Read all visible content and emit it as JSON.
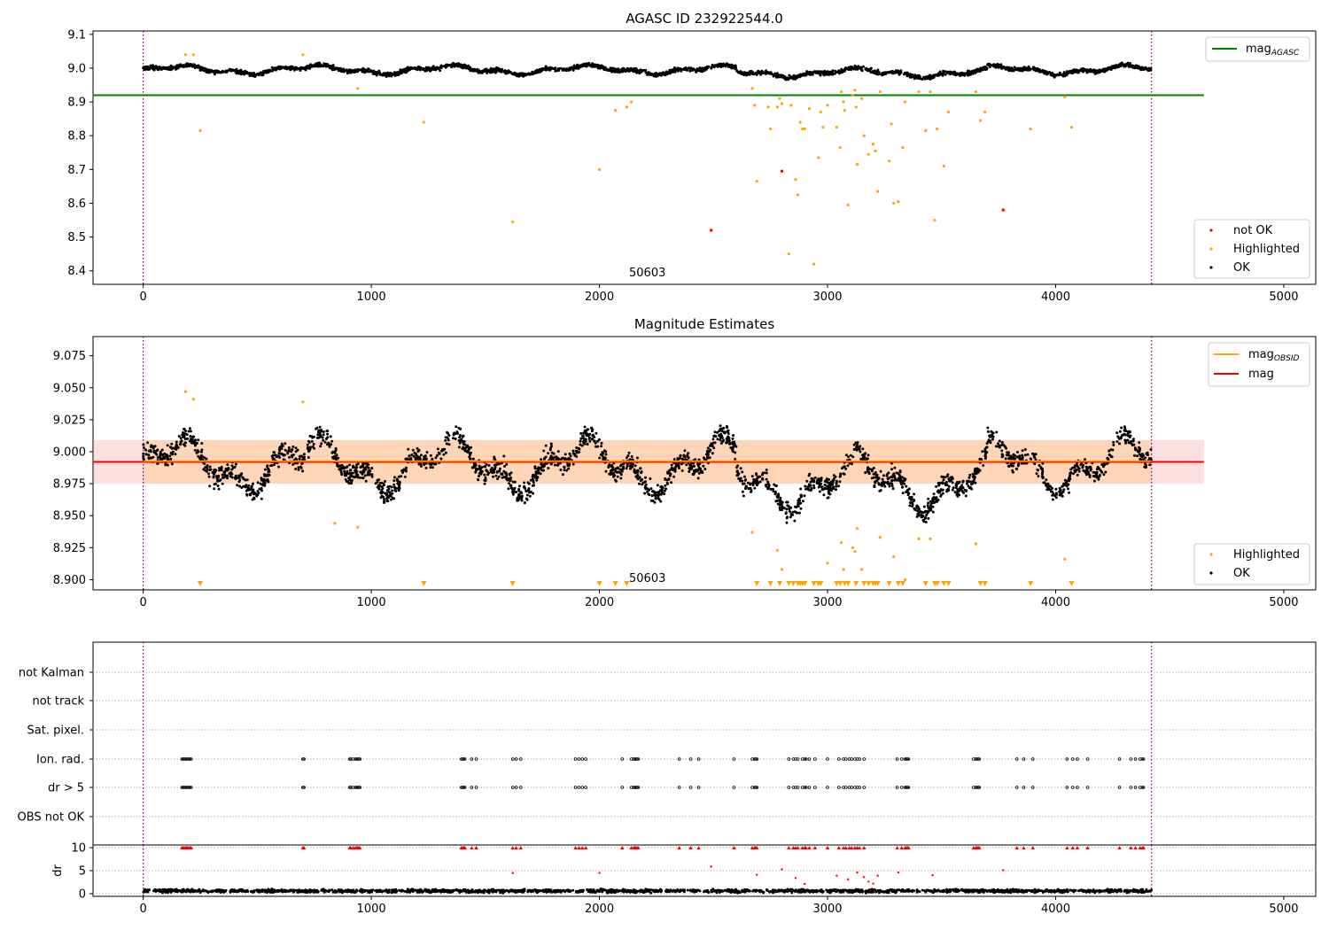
{
  "chart_data": [
    {
      "type": "scatter",
      "title": "AGASC ID 232922544.0",
      "annotation": "50603",
      "xlim": [
        -220,
        5140
      ],
      "ylim": [
        8.36,
        9.11
      ],
      "xticks": [
        "0",
        "1000",
        "2000",
        "3000",
        "4000",
        "5000"
      ],
      "yticks": [
        "8.4",
        "8.5",
        "8.6",
        "8.7",
        "8.8",
        "8.9",
        "9.0",
        "9.1"
      ],
      "vlines": [
        0,
        4420
      ],
      "hline": {
        "name": "mag",
        "subscript": "AGASC",
        "y": 8.92,
        "x_range": [
          0,
          4650
        ],
        "color": "#008000"
      },
      "ok_band": {
        "center": 8.995,
        "amplitude": 0.022
      },
      "highlighted": [
        [
          185,
          9.04
        ],
        [
          220,
          9.04
        ],
        [
          250,
          8.815
        ],
        [
          700,
          9.04
        ],
        [
          940,
          8.94
        ],
        [
          1230,
          8.84
        ],
        [
          1620,
          8.545
        ],
        [
          2000,
          8.7
        ],
        [
          2070,
          8.875
        ],
        [
          2120,
          8.885
        ],
        [
          2140,
          8.9
        ],
        [
          2670,
          8.94
        ],
        [
          2680,
          8.89
        ],
        [
          2690,
          8.665
        ],
        [
          2740,
          8.885
        ],
        [
          2750,
          8.82
        ],
        [
          2780,
          8.885
        ],
        [
          2790,
          8.91
        ],
        [
          2800,
          8.895
        ],
        [
          2830,
          8.45
        ],
        [
          2840,
          8.89
        ],
        [
          2860,
          8.67
        ],
        [
          2870,
          8.625
        ],
        [
          2880,
          8.84
        ],
        [
          2890,
          8.82
        ],
        [
          2900,
          8.82
        ],
        [
          2920,
          8.88
        ],
        [
          2940,
          8.42
        ],
        [
          2960,
          8.735
        ],
        [
          2970,
          8.87
        ],
        [
          2980,
          8.825
        ],
        [
          3000,
          8.89
        ],
        [
          3040,
          8.825
        ],
        [
          3055,
          8.765
        ],
        [
          3060,
          8.93
        ],
        [
          3070,
          8.9
        ],
        [
          3075,
          8.875
        ],
        [
          3090,
          8.595
        ],
        [
          3110,
          8.92
        ],
        [
          3120,
          8.935
        ],
        [
          3125,
          8.885
        ],
        [
          3130,
          8.715
        ],
        [
          3150,
          8.91
        ],
        [
          3160,
          8.8
        ],
        [
          3180,
          8.745
        ],
        [
          3200,
          8.775
        ],
        [
          3210,
          8.755
        ],
        [
          3220,
          8.635
        ],
        [
          3230,
          8.93
        ],
        [
          3270,
          8.725
        ],
        [
          3280,
          8.835
        ],
        [
          3290,
          8.6
        ],
        [
          3310,
          8.605
        ],
        [
          3330,
          8.765
        ],
        [
          3340,
          8.9
        ],
        [
          3400,
          8.93
        ],
        [
          3430,
          8.815
        ],
        [
          3450,
          8.93
        ],
        [
          3470,
          8.55
        ],
        [
          3480,
          8.82
        ],
        [
          3510,
          8.71
        ],
        [
          3530,
          8.87
        ],
        [
          3650,
          8.93
        ],
        [
          3670,
          8.845
        ],
        [
          3690,
          8.87
        ],
        [
          3890,
          8.82
        ],
        [
          4040,
          8.915
        ],
        [
          4070,
          8.825
        ]
      ],
      "not_ok": [
        [
          2800,
          8.695
        ],
        [
          2490,
          8.52
        ],
        [
          3770,
          8.58
        ]
      ],
      "legend": [
        {
          "label": "not OK",
          "color": "#ff0000"
        },
        {
          "label": "Highlighted",
          "color": "#ffa500"
        },
        {
          "label": "OK",
          "color": "#000000"
        }
      ]
    },
    {
      "type": "scatter",
      "title": "Magnitude Estimates",
      "annotation": "50603",
      "xlim": [
        -220,
        5140
      ],
      "ylim": [
        8.892,
        9.09
      ],
      "xticks": [
        "0",
        "1000",
        "2000",
        "3000",
        "4000",
        "5000"
      ],
      "yticks": [
        "8.900",
        "8.925",
        "8.950",
        "8.975",
        "9.000",
        "9.025",
        "9.050",
        "9.075"
      ],
      "vlines": [
        0,
        4420
      ],
      "mag_line": {
        "name": "mag",
        "y": 8.992,
        "color": "#ff0000"
      },
      "mag_band": [
        8.975,
        9.009
      ],
      "obsid_series": {
        "name": "mag",
        "subscript": "OBSID",
        "color": "#ffa500"
      },
      "ok_band": {
        "center": 8.99,
        "amplitude": 0.035
      },
      "highlighted": [
        [
          185,
          9.047
        ],
        [
          220,
          9.041
        ],
        [
          700,
          9.039
        ],
        [
          840,
          8.944
        ],
        [
          940,
          8.941
        ],
        [
          2670,
          8.937
        ],
        [
          2780,
          8.923
        ],
        [
          2800,
          8.908
        ],
        [
          3000,
          8.913
        ],
        [
          3060,
          8.929
        ],
        [
          3070,
          8.908
        ],
        [
          3110,
          8.925
        ],
        [
          3120,
          8.922
        ],
        [
          3130,
          8.94
        ],
        [
          3150,
          8.908
        ],
        [
          3230,
          8.933
        ],
        [
          3290,
          8.918
        ],
        [
          3340,
          8.9
        ],
        [
          3400,
          8.932
        ],
        [
          3450,
          8.932
        ],
        [
          3650,
          8.928
        ],
        [
          4040,
          8.916
        ]
      ],
      "clipped_x": [
        250,
        1230,
        1620,
        2000,
        2070,
        2120,
        2690,
        2750,
        2790,
        2830,
        2850,
        2870,
        2880,
        2890,
        2900,
        2940,
        2960,
        2970,
        3040,
        3055,
        3075,
        3090,
        3125,
        3160,
        3180,
        3200,
        3210,
        3220,
        3270,
        3310,
        3330,
        3430,
        3470,
        3480,
        3510,
        3530,
        3670,
        3690,
        3890,
        4070
      ],
      "legend": [
        {
          "label": "mag",
          "subscript": "OBSID",
          "color": "#ffa500",
          "kind": "line"
        },
        {
          "label": "mag",
          "color": "#ff0000",
          "kind": "line"
        },
        {
          "label": "Highlighted",
          "color": "#ffa500",
          "kind": "point"
        },
        {
          "label": "OK",
          "color": "#000000",
          "kind": "point"
        }
      ]
    },
    {
      "type": "scatter",
      "xlim": [
        -220,
        5140
      ],
      "xticks": [
        "0",
        "1000",
        "2000",
        "3000",
        "4000",
        "5000"
      ],
      "vlines": [
        0,
        4420
      ],
      "flag_rows": [
        "not Kalman",
        "not track",
        "Sat. pixel.",
        "Ion. rad.",
        "dr > 5",
        "OBS not OK"
      ],
      "flag_clusters_x": [
        170,
        175,
        180,
        185,
        190,
        195,
        200,
        205,
        210,
        700,
        705,
        905,
        910,
        920,
        930,
        935,
        940,
        945,
        950,
        1395,
        1400,
        1405,
        1410,
        1440,
        1460,
        1620,
        1635,
        1655,
        1895,
        1910,
        1925,
        1940,
        2100,
        2140,
        2150,
        2155,
        2160,
        2165,
        2170,
        2350,
        2400,
        2435,
        2590,
        2670,
        2680,
        2685,
        2690,
        2830,
        2850,
        2860,
        2870,
        2890,
        2900,
        2905,
        2920,
        2945,
        3000,
        3050,
        3070,
        3080,
        3095,
        3105,
        3120,
        3130,
        3140,
        3160,
        3305,
        3325,
        3340,
        3345,
        3350,
        3355,
        3640,
        3650,
        3655,
        3660,
        3665,
        3830,
        3860,
        3900,
        4050,
        4075,
        4095,
        4140,
        4280,
        4330,
        4350,
        4370,
        4380,
        4385
      ],
      "dr_ylim": [
        0,
        10
      ],
      "dr_ylabel": "dr",
      "dr_yticks": [
        "0",
        "5",
        "10"
      ],
      "dr_outliers": [
        [
          1620,
          4.5
        ],
        [
          2000,
          4.5
        ],
        [
          2490,
          5.9
        ],
        [
          2690,
          4.1
        ],
        [
          2800,
          5.3
        ],
        [
          2860,
          3.4
        ],
        [
          2900,
          2.1
        ],
        [
          3040,
          3.9
        ],
        [
          3090,
          3.1
        ],
        [
          3130,
          4.6
        ],
        [
          3160,
          3.6
        ],
        [
          3180,
          2.6
        ],
        [
          3200,
          2.2
        ],
        [
          3220,
          3.9
        ],
        [
          3310,
          4.6
        ],
        [
          3460,
          4.0
        ],
        [
          3770,
          5.1
        ]
      ]
    }
  ]
}
